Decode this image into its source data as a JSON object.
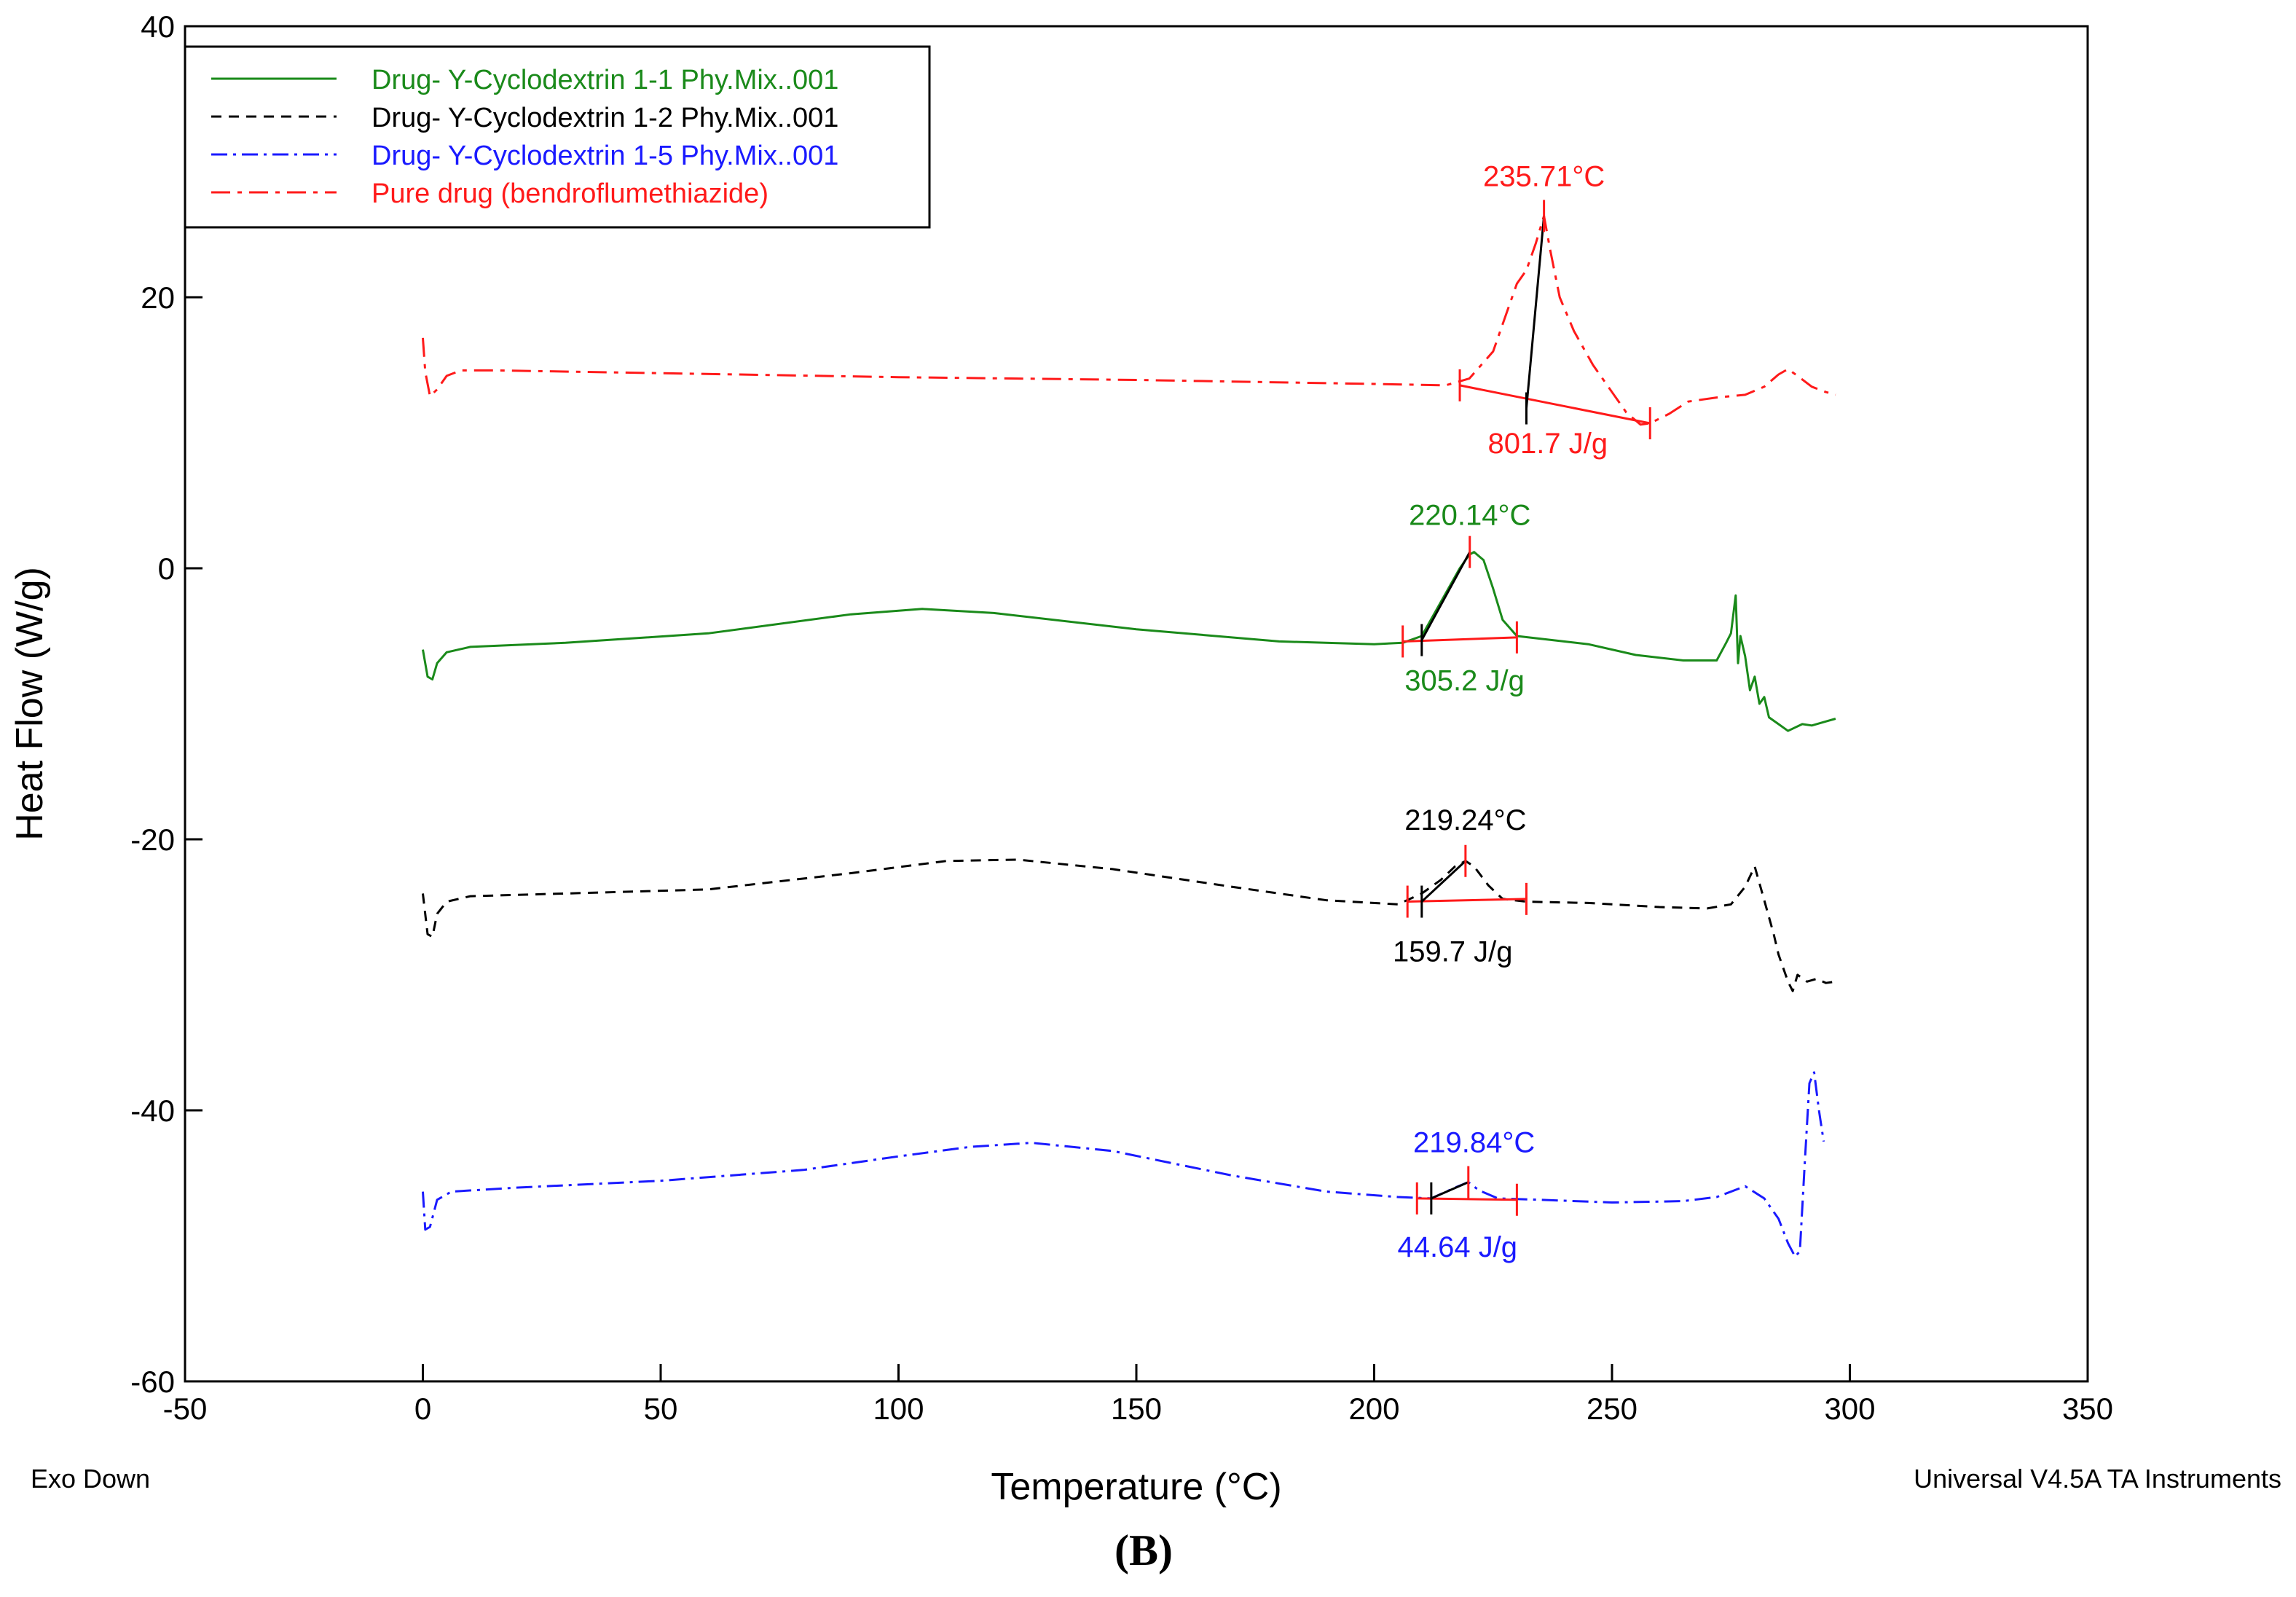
{
  "chart_data": {
    "type": "line",
    "x_label": "Temperature (°C)",
    "y_label": "Heat Flow (W/g)",
    "xlim": [
      -50,
      350
    ],
    "ylim": [
      -60,
      40
    ],
    "x_ticks": [
      -50,
      0,
      50,
      100,
      150,
      200,
      250,
      300,
      350
    ],
    "y_ticks": [
      -60,
      -40,
      -20,
      0,
      20,
      40
    ],
    "footer_left": "Exo Down",
    "footer_right": "Universal V4.5A TA Instruments",
    "panel_label": "(B)",
    "colors": {
      "green": "#1a8a1a",
      "black": "#000000",
      "blue": "#1a1aff",
      "red": "#ff1a1a",
      "baseline": "#ff1a1a"
    },
    "series": [
      {
        "name": "Drug- Y-Cyclodextrin 1-1 Phy.Mix..001",
        "color": "#1a8a1a",
        "dash": "none",
        "points": [
          [
            0,
            -6
          ],
          [
            1,
            -8
          ],
          [
            2,
            -8.2
          ],
          [
            3,
            -7
          ],
          [
            5,
            -6.2
          ],
          [
            10,
            -5.8
          ],
          [
            30,
            -5.5
          ],
          [
            60,
            -4.8
          ],
          [
            90,
            -3.4
          ],
          [
            105,
            -3
          ],
          [
            120,
            -3.3
          ],
          [
            150,
            -4.5
          ],
          [
            180,
            -5.4
          ],
          [
            200,
            -5.6
          ],
          [
            206,
            -5.5
          ],
          [
            210,
            -5
          ],
          [
            214,
            -2.5
          ],
          [
            218,
            0
          ],
          [
            220,
            1
          ],
          [
            221,
            1.2
          ],
          [
            223,
            0.6
          ],
          [
            225,
            -1.5
          ],
          [
            227,
            -3.8
          ],
          [
            230,
            -5
          ],
          [
            235,
            -5.2
          ],
          [
            245,
            -5.6
          ],
          [
            255,
            -6.4
          ],
          [
            265,
            -6.8
          ],
          [
            272,
            -6.8
          ],
          [
            274,
            -5.5
          ],
          [
            275,
            -4.8
          ],
          [
            276,
            -2
          ],
          [
            276.5,
            -7
          ],
          [
            277,
            -5
          ],
          [
            278,
            -6.5
          ],
          [
            279,
            -9
          ],
          [
            280,
            -8
          ],
          [
            281,
            -10
          ],
          [
            282,
            -9.5
          ],
          [
            283,
            -11
          ],
          [
            285,
            -11.5
          ],
          [
            287,
            -12
          ],
          [
            290,
            -11.5
          ],
          [
            292,
            -11.6
          ],
          [
            295,
            -11.3
          ],
          [
            297,
            -11.1
          ]
        ]
      },
      {
        "name": "Drug- Y-Cyclodextrin 1-2 Phy.Mix..001",
        "color": "#000000",
        "dash": "14,10",
        "points": [
          [
            0,
            -24
          ],
          [
            1,
            -27
          ],
          [
            2,
            -27.2
          ],
          [
            3,
            -25.5
          ],
          [
            5,
            -24.6
          ],
          [
            10,
            -24.2
          ],
          [
            30,
            -24
          ],
          [
            60,
            -23.7
          ],
          [
            90,
            -22.5
          ],
          [
            110,
            -21.6
          ],
          [
            125,
            -21.5
          ],
          [
            145,
            -22.2
          ],
          [
            170,
            -23.5
          ],
          [
            190,
            -24.5
          ],
          [
            205,
            -24.8
          ],
          [
            210,
            -24
          ],
          [
            214,
            -23
          ],
          [
            217,
            -22
          ],
          [
            219.2,
            -21.6
          ],
          [
            221,
            -22
          ],
          [
            224,
            -23.4
          ],
          [
            227,
            -24.4
          ],
          [
            232,
            -24.6
          ],
          [
            245,
            -24.7
          ],
          [
            260,
            -25
          ],
          [
            270,
            -25.1
          ],
          [
            275,
            -24.8
          ],
          [
            278,
            -23.5
          ],
          [
            280,
            -22
          ],
          [
            282,
            -24.5
          ],
          [
            284,
            -27
          ],
          [
            285,
            -28.5
          ],
          [
            286,
            -29.5
          ],
          [
            287,
            -30.5
          ],
          [
            288,
            -31.2
          ],
          [
            289,
            -30
          ],
          [
            291,
            -30.5
          ],
          [
            293,
            -30.3
          ],
          [
            295,
            -30.6
          ],
          [
            297,
            -30.5
          ]
        ]
      },
      {
        "name": "Drug- Y-Cyclodextrin 1-5 Phy.Mix..001",
        "color": "#1a1aff",
        "dash": "22,8,4,8",
        "points": [
          [
            0,
            -46
          ],
          [
            0.5,
            -48.8
          ],
          [
            1.5,
            -48.6
          ],
          [
            3,
            -46.6
          ],
          [
            6,
            -46
          ],
          [
            20,
            -45.7
          ],
          [
            50,
            -45.2
          ],
          [
            80,
            -44.4
          ],
          [
            100,
            -43.4
          ],
          [
            115,
            -42.7
          ],
          [
            128,
            -42.4
          ],
          [
            145,
            -43
          ],
          [
            170,
            -44.8
          ],
          [
            190,
            -46
          ],
          [
            205,
            -46.4
          ],
          [
            212,
            -46.5
          ],
          [
            217,
            -45.7
          ],
          [
            219.8,
            -45.3
          ],
          [
            222,
            -45.9
          ],
          [
            226,
            -46.5
          ],
          [
            235,
            -46.6
          ],
          [
            250,
            -46.8
          ],
          [
            265,
            -46.7
          ],
          [
            272,
            -46.4
          ],
          [
            278,
            -45.6
          ],
          [
            282,
            -46.5
          ],
          [
            285,
            -48
          ],
          [
            287,
            -49.8
          ],
          [
            288.5,
            -50.8
          ],
          [
            289.5,
            -50.4
          ],
          [
            290.5,
            -44
          ],
          [
            291.5,
            -38
          ],
          [
            292.5,
            -37.2
          ],
          [
            293.5,
            -40
          ],
          [
            294.5,
            -42.3
          ]
        ]
      },
      {
        "name": "Pure drug (bendroflumethiazide)",
        "color": "#ff1a1a",
        "dash": "26,10,6,10",
        "points": [
          [
            0,
            17
          ],
          [
            0.5,
            14.5
          ],
          [
            1.5,
            12.7
          ],
          [
            3,
            13.2
          ],
          [
            5,
            14.2
          ],
          [
            8,
            14.6
          ],
          [
            15,
            14.6
          ],
          [
            50,
            14.4
          ],
          [
            100,
            14.1
          ],
          [
            150,
            13.9
          ],
          [
            200,
            13.6
          ],
          [
            215,
            13.5
          ],
          [
            220,
            14
          ],
          [
            225,
            16
          ],
          [
            228,
            19
          ],
          [
            230,
            21
          ],
          [
            232,
            22
          ],
          [
            234,
            24
          ],
          [
            235.7,
            26
          ],
          [
            237,
            23.5
          ],
          [
            239,
            20
          ],
          [
            242,
            17.5
          ],
          [
            246,
            15
          ],
          [
            250,
            13
          ],
          [
            253,
            11.5
          ],
          [
            256,
            10.6
          ],
          [
            258,
            10.7
          ],
          [
            262,
            11.4
          ],
          [
            266,
            12.3
          ],
          [
            272,
            12.6
          ],
          [
            278,
            12.8
          ],
          [
            282,
            13.4
          ],
          [
            285,
            14.3
          ],
          [
            287,
            14.7
          ],
          [
            289,
            14.2
          ],
          [
            292,
            13.4
          ],
          [
            295,
            13
          ],
          [
            297,
            12.8
          ]
        ]
      }
    ],
    "peaks": [
      {
        "series": "Pure drug (bendroflumethiazide)",
        "peak_label": "235.71°C",
        "enthalpy_label": "801.7 J/g",
        "color": "#ff1a1a",
        "baseline_markers": [
          [
            218,
            13.5
          ],
          [
            258,
            10.7
          ]
        ],
        "peak_marker": [
          235.7,
          26
        ],
        "tangent": [
          [
            232,
            11.8
          ],
          [
            235.7,
            26
          ]
        ],
        "onset_marker": [
          232,
          11.8
        ],
        "peak_label_pos": [
          235.7,
          28.2
        ],
        "enthalpy_label_pos": [
          236.5,
          8.5
        ]
      },
      {
        "series": "Drug- Y-Cyclodextrin 1-1 Phy.Mix..001",
        "peak_label": "220.14°C",
        "enthalpy_label": "305.2 J/g",
        "color": "#1a8a1a",
        "baseline_markers": [
          [
            206,
            -5.4
          ],
          [
            230,
            -5.1
          ]
        ],
        "peak_marker": [
          220.1,
          1.2
        ],
        "tangent": [
          [
            210,
            -5.3
          ],
          [
            220.1,
            1.2
          ]
        ],
        "onset_marker": [
          210,
          -5.3
        ],
        "peak_label_pos": [
          220.1,
          3.2
        ],
        "enthalpy_label_pos": [
          219,
          -9
        ]
      },
      {
        "series": "Drug- Y-Cyclodextrin 1-2 Phy.Mix..001",
        "peak_label": "219.24°C",
        "enthalpy_label": "159.7 J/g",
        "color": "#000000",
        "baseline_markers": [
          [
            207,
            -24.6
          ],
          [
            232,
            -24.4
          ]
        ],
        "peak_marker": [
          219.2,
          -21.6
        ],
        "tangent": [
          [
            210,
            -24.6
          ],
          [
            219.2,
            -21.6
          ]
        ],
        "onset_marker": [
          210,
          -24.6
        ],
        "peak_label_pos": [
          219.2,
          -19.3
        ],
        "enthalpy_label_pos": [
          216.5,
          -29
        ]
      },
      {
        "series": "Drug- Y-Cyclodextrin 1-5 Phy.Mix..001",
        "peak_label": "219.84°C",
        "enthalpy_label": "44.64 J/g",
        "color": "#1a1aff",
        "baseline_markers": [
          [
            209,
            -46.5
          ],
          [
            230,
            -46.6
          ]
        ],
        "peak_marker": [
          219.8,
          -45.3
        ],
        "tangent": [
          [
            212,
            -46.5
          ],
          [
            219.8,
            -45.3
          ]
        ],
        "onset_marker": [
          212,
          -46.5
        ],
        "peak_label_pos": [
          221,
          -43.1
        ],
        "enthalpy_label_pos": [
          217.5,
          -50.8
        ]
      }
    ]
  }
}
